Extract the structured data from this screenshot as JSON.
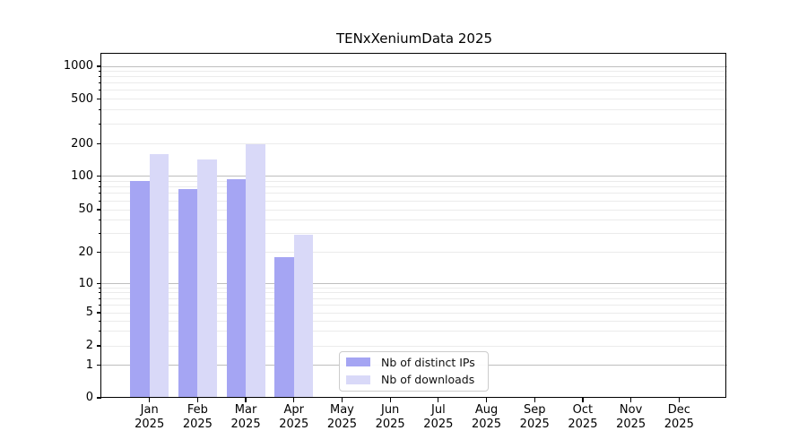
{
  "chart_data": {
    "type": "bar",
    "title": "TENxXeniumData 2025",
    "months": [
      "Jan",
      "Feb",
      "Mar",
      "Apr",
      "May",
      "Jun",
      "Jul",
      "Aug",
      "Sep",
      "Oct",
      "Nov",
      "Dec"
    ],
    "year": "2025",
    "series": [
      {
        "name": "Nb of distinct IPs",
        "color": "#a5a5f3",
        "values": [
          90,
          77,
          94,
          18,
          0,
          0,
          0,
          0,
          0,
          0,
          0,
          0
        ]
      },
      {
        "name": "Nb of downloads",
        "color": "#d9d9f8",
        "values": [
          160,
          142,
          200,
          29,
          0,
          0,
          0,
          0,
          0,
          0,
          0,
          0
        ]
      }
    ],
    "yscale": "symlog",
    "yticks": [
      0,
      1,
      2,
      5,
      10,
      20,
      50,
      100,
      200,
      500,
      1000
    ],
    "ylim": [
      0,
      1200
    ],
    "grid": true,
    "legend_position": "lower-center"
  },
  "colors": {
    "grid_major": "#bebebe",
    "grid_minor": "#ebebeb",
    "spine": "#000000",
    "background": "#ffffff"
  }
}
